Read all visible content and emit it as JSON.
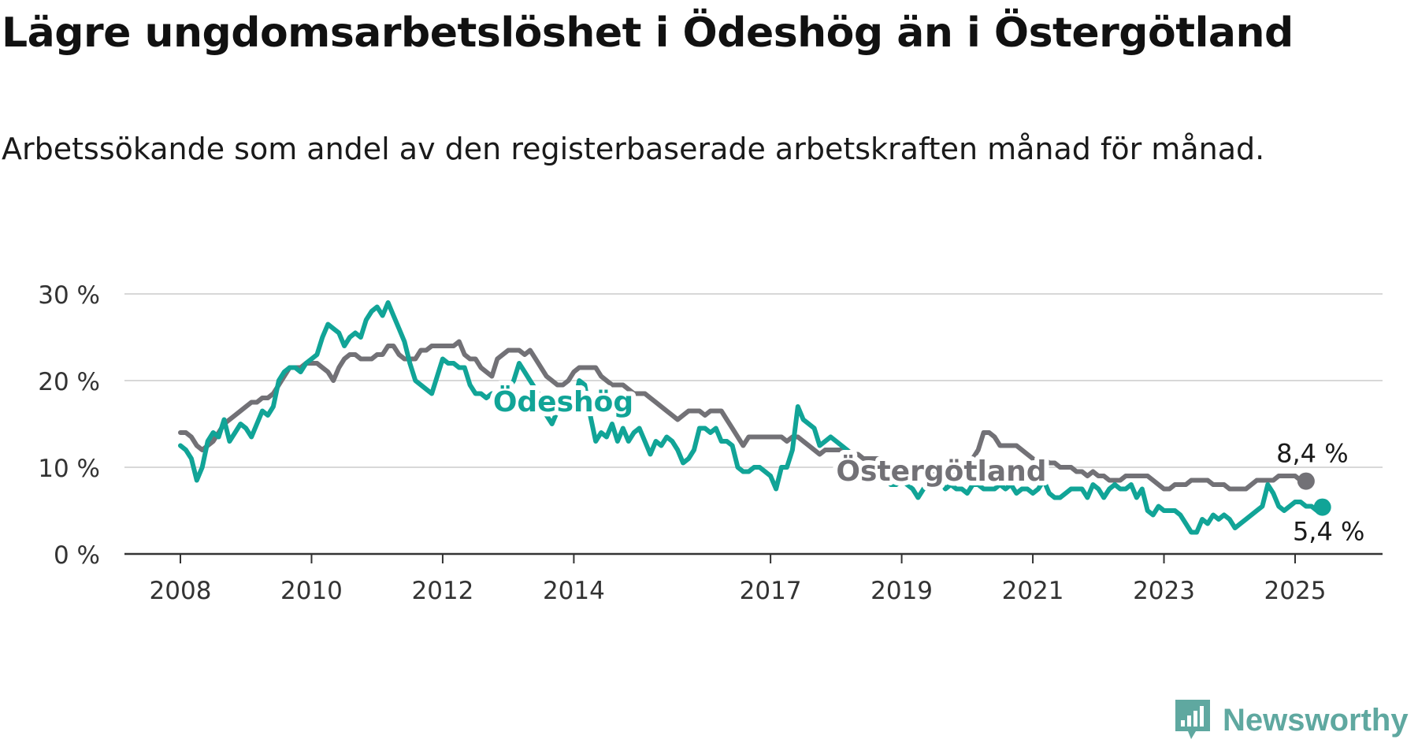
{
  "header": {
    "title": "Lägre ungdomsarbetslöshet i Ödeshög än i Östergötland",
    "subtitle": "Arbetssökande som andel av den registerbaserade arbetskraften månad för månad."
  },
  "brand": {
    "name": "Newsworthy",
    "icon": "newsworthy-logo-icon",
    "color": "#5fa8a0"
  },
  "colors": {
    "odeshog": "#11a497",
    "ostergotland": "#727176",
    "grid": "#d8d8d8",
    "axis": "#333333"
  },
  "chart_data": {
    "type": "line",
    "title": "Lägre ungdomsarbetslöshet i Ödeshög än i Östergötland",
    "subtitle": "Arbetssökande som andel av den registerbaserade arbetskraften månad för månad.",
    "xlabel": "",
    "ylabel": "",
    "x_start": "2008-01",
    "x_ticks": [
      "2008",
      "2010",
      "2012",
      "2014",
      "2017",
      "2019",
      "2021",
      "2023",
      "2025"
    ],
    "y_ticks": [
      0,
      10,
      20,
      30
    ],
    "y_tick_labels": [
      "0 %",
      "10 %",
      "20 %",
      "30 %"
    ],
    "ylim": [
      0,
      30
    ],
    "grid": true,
    "legend": "direct labels on lines",
    "series": [
      {
        "name": "Ödeshög",
        "color": "#11a497",
        "end_label": "5,4 %",
        "values": [
          12.5,
          12,
          11,
          8.5,
          10,
          13,
          14,
          13.5,
          15.5,
          13,
          14,
          15,
          14.5,
          13.5,
          15,
          16.5,
          16,
          17,
          20,
          21,
          21.5,
          21.5,
          21,
          22,
          22.5,
          23,
          25,
          26.5,
          26,
          25.5,
          24,
          25,
          25.5,
          25,
          27,
          28,
          28.5,
          27.5,
          29,
          27.5,
          26,
          24.5,
          22,
          20,
          19.5,
          19,
          18.5,
          20.5,
          22.5,
          22,
          22,
          21.5,
          21.5,
          19.5,
          18.5,
          18.5,
          18,
          18.5,
          17.5,
          19.5,
          19,
          20,
          22,
          21,
          20,
          19,
          18,
          16,
          15,
          16.5,
          17,
          18,
          17,
          20,
          19.5,
          16,
          13,
          14,
          13.5,
          15,
          13,
          14.5,
          13,
          14,
          14.5,
          13,
          11.5,
          13,
          12.5,
          13.5,
          13,
          12,
          10.5,
          11,
          12,
          14.5,
          14.5,
          14,
          14.5,
          13,
          13,
          12.5,
          10,
          9.5,
          9.5,
          10,
          10,
          9.5,
          9,
          7.5,
          10,
          10,
          12,
          17,
          15.5,
          15,
          14.5,
          12.5,
          13,
          13.5,
          13,
          12.5,
          12,
          11,
          9.5,
          9.5,
          10,
          9.5,
          9.5,
          9,
          8,
          8,
          8.5,
          8,
          7.5,
          6.5,
          7.5,
          8,
          8,
          8.5,
          7.5,
          8,
          7.5,
          7.5,
          7,
          8,
          8,
          7.5,
          7.5,
          7.5,
          8,
          7.5,
          8,
          7,
          7.5,
          7.5,
          7,
          7.5,
          8.5,
          7,
          6.5,
          6.5,
          7,
          7.5,
          7.5,
          7.5,
          6.5,
          8,
          7.5,
          6.5,
          7.5,
          8,
          7.5,
          7.5,
          8,
          6.5,
          7.5,
          5,
          4.5,
          5.5,
          5,
          5,
          5,
          4.5,
          3.5,
          2.5,
          2.5,
          4,
          3.5,
          4.5,
          4,
          4.5,
          4,
          3,
          3.5,
          4,
          4.5,
          5,
          5.5,
          8,
          7,
          5.5,
          5,
          5.5,
          6,
          6,
          5.5,
          5.5,
          5,
          5.4
        ]
      },
      {
        "name": "Östergötland",
        "color": "#727176",
        "end_label": "8,4 %",
        "values": [
          14,
          14,
          13.5,
          12.5,
          12,
          12.5,
          13,
          14,
          15,
          15.5,
          16,
          16.5,
          17,
          17.5,
          17.5,
          18,
          18,
          18.5,
          19.5,
          20.5,
          21.5,
          21.5,
          21.5,
          22,
          22,
          22,
          21.5,
          21,
          20,
          21.5,
          22.5,
          23,
          23,
          22.5,
          22.5,
          22.5,
          23,
          23,
          24,
          24,
          23,
          22.5,
          22.5,
          22.5,
          23.5,
          23.5,
          24,
          24,
          24,
          24,
          24,
          24.5,
          23,
          22.5,
          22.5,
          21.5,
          21,
          20.5,
          22.5,
          23,
          23.5,
          23.5,
          23.5,
          23,
          23.5,
          22.5,
          21.5,
          20.5,
          20,
          19.5,
          19.5,
          20,
          21,
          21.5,
          21.5,
          21.5,
          21.5,
          20.5,
          20,
          19.5,
          19.5,
          19.5,
          19,
          18.5,
          18.5,
          18.5,
          18,
          17.5,
          17,
          16.5,
          16,
          15.5,
          16,
          16.5,
          16.5,
          16.5,
          16,
          16.5,
          16.5,
          16.5,
          15.5,
          14.5,
          13.5,
          12.5,
          13.5,
          13.5,
          13.5,
          13.5,
          13.5,
          13.5,
          13.5,
          13,
          13.5,
          13.5,
          13,
          12.5,
          12,
          11.5,
          12,
          12,
          12,
          12,
          12,
          11.5,
          11.5,
          11,
          11,
          11,
          11,
          10.5,
          10,
          10,
          10.5,
          10,
          9.5,
          9.5,
          9.5,
          9.5,
          9.5,
          9,
          9,
          9.5,
          9.5,
          9.5,
          10.5,
          11,
          12,
          14,
          14,
          13.5,
          12.5,
          12.5,
          12.5,
          12.5,
          12,
          11.5,
          11,
          10.5,
          11,
          10.5,
          10.5,
          10,
          10,
          10,
          9.5,
          9.5,
          9,
          9.5,
          9,
          9,
          8.5,
          8.5,
          8.5,
          9,
          9,
          9,
          9,
          9,
          8.5,
          8,
          7.5,
          7.5,
          8,
          8,
          8,
          8.5,
          8.5,
          8.5,
          8.5,
          8,
          8,
          8,
          7.5,
          7.5,
          7.5,
          7.5,
          8,
          8.5,
          8.5,
          8.5,
          8.5,
          9,
          9,
          9,
          9,
          8.5,
          8.4
        ]
      }
    ],
    "line_labels": [
      "Ödeshög",
      "Östergötland"
    ]
  }
}
